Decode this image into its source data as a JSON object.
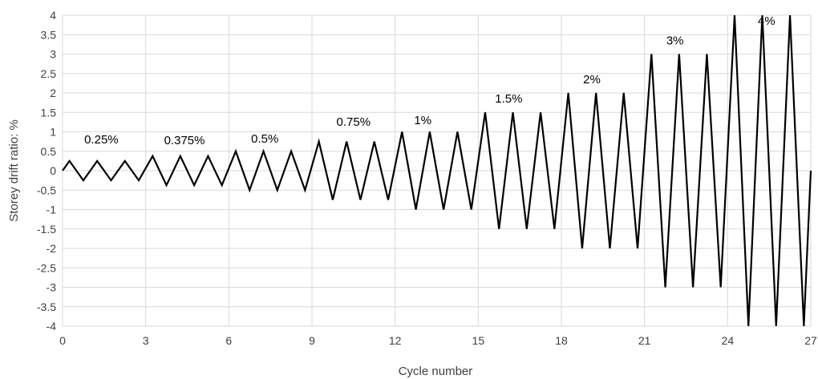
{
  "chart_data": {
    "type": "line",
    "xlabel": "Cycle number",
    "ylabel": "Storey drift ratio: %",
    "xlim": [
      0,
      27
    ],
    "ylim": [
      -4,
      4
    ],
    "x_ticks": [
      0,
      3,
      6,
      9,
      12,
      15,
      18,
      21,
      24,
      27
    ],
    "y_ticks": [
      4,
      3.5,
      3,
      2.5,
      2,
      1.5,
      1,
      0.5,
      0,
      -0.5,
      -1,
      -1.5,
      -2,
      -2.5,
      -3,
      -3.5,
      -4
    ],
    "grid": true,
    "line_color": "#000000",
    "grid_color": "#d9d9d9",
    "series": [
      {
        "x": [
          0,
          0.25,
          0.75,
          1.25,
          1.75,
          2.25,
          2.75,
          3.25,
          3.75,
          4.25,
          4.75,
          5.25,
          5.75,
          6.25,
          6.75,
          7.25,
          7.75,
          8.25,
          8.75,
          9.25,
          9.75,
          10.25,
          10.75,
          11.25,
          11.75,
          12.25,
          12.75,
          13.25,
          13.75,
          14.25,
          14.75,
          15.25,
          15.75,
          16.25,
          16.75,
          17.25,
          17.75,
          18.25,
          18.75,
          19.25,
          19.75,
          20.25,
          20.75,
          21.25,
          21.75,
          22.25,
          22.75,
          23.25,
          23.75,
          24.25,
          24.75,
          25.25,
          25.75,
          26.25,
          26.75,
          27
        ],
        "y": [
          0,
          0.25,
          -0.25,
          0.25,
          -0.25,
          0.25,
          -0.25,
          0.375,
          -0.375,
          0.375,
          -0.375,
          0.375,
          -0.375,
          0.5,
          -0.5,
          0.5,
          -0.5,
          0.5,
          -0.5,
          0.75,
          -0.75,
          0.75,
          -0.75,
          0.75,
          -0.75,
          1,
          -1,
          1,
          -1,
          1,
          -1,
          1.5,
          -1.5,
          1.5,
          -1.5,
          1.5,
          -1.5,
          2,
          -2,
          2,
          -2,
          2,
          -2,
          3,
          -3,
          3,
          -3,
          3,
          -3,
          4,
          -4,
          4,
          -4,
          4,
          -4,
          0
        ]
      }
    ],
    "annotations": [
      {
        "text": "0.25%",
        "x": 1.4,
        "y": 0.7
      },
      {
        "text": "0.375%",
        "x": 4.4,
        "y": 0.68
      },
      {
        "text": "0.5%",
        "x": 7.3,
        "y": 0.72
      },
      {
        "text": "0.75%",
        "x": 10.5,
        "y": 1.15
      },
      {
        "text": "1%",
        "x": 13.0,
        "y": 1.2
      },
      {
        "text": "1.5%",
        "x": 16.1,
        "y": 1.75
      },
      {
        "text": "2%",
        "x": 19.1,
        "y": 2.25
      },
      {
        "text": "3%",
        "x": 22.1,
        "y": 3.25
      },
      {
        "text": "4%",
        "x": 25.4,
        "y": 3.75
      }
    ]
  }
}
